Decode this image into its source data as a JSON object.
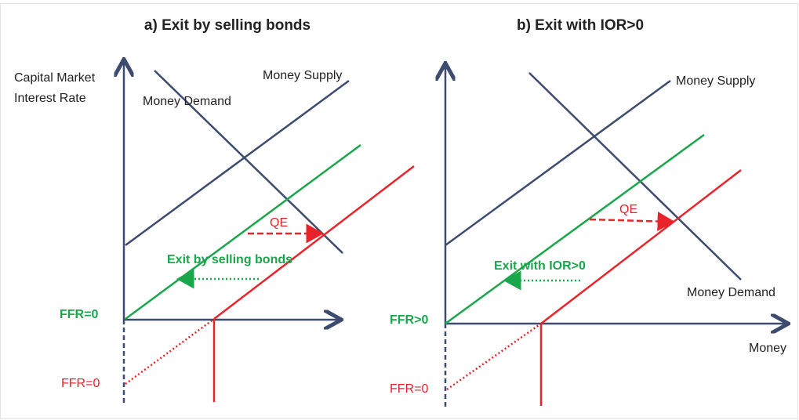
{
  "panel_a": {
    "title": "a) Exit by selling bonds",
    "y_axis_label": [
      "Capital Market",
      "Interest Rate"
    ],
    "money_demand": "Money Demand",
    "money_supply": "Money Supply",
    "qe": "QE",
    "exit_label": "Exit by selling bonds",
    "ffr_green": "FFR=0",
    "ffr_red": "FFR=0"
  },
  "panel_b": {
    "title": "b) Exit with IOR>0",
    "money_supply": "Money Supply",
    "money_demand": "Money Demand",
    "qe": "QE",
    "exit_label": "Exit with IOR>0",
    "ffr_green": "FFR>0",
    "ffr_red": "FFR=0",
    "x_axis_label": "Money"
  }
}
